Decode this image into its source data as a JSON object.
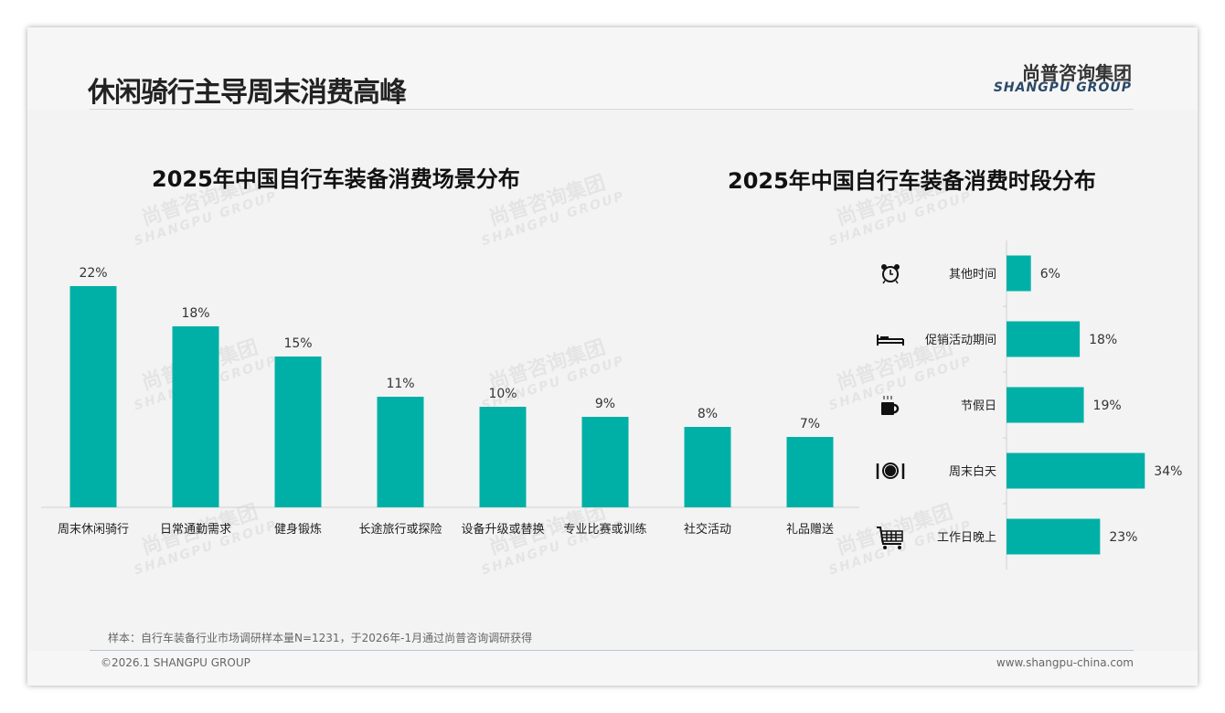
{
  "header": {
    "title": "休闲骑行主导周末消费高峰",
    "logo_cn": "尚普咨询集团",
    "logo_en": "SHANGPU GROUP"
  },
  "watermark": {
    "cn": "尚普咨询集团",
    "en": "SHANGPU GROUP"
  },
  "colors": {
    "bar": "#00b0a6"
  },
  "chart_data": [
    {
      "type": "bar",
      "title": "2025年中国自行车装备消费场景分布",
      "categories": [
        "周末休闲骑行",
        "日常通勤需求",
        "健身锻炼",
        "长途旅行或探险",
        "设备升级或替换",
        "专业比赛或训练",
        "社交活动",
        "礼品赠送"
      ],
      "values": [
        22,
        18,
        15,
        11,
        10,
        9,
        8,
        7
      ],
      "labels": [
        "22%",
        "18%",
        "15%",
        "11%",
        "10%",
        "9%",
        "8%",
        "7%"
      ],
      "unit": "%",
      "ylim": [
        0,
        25
      ]
    },
    {
      "type": "bar",
      "orientation": "horizontal",
      "title": "2025年中国自行车装备消费时段分布",
      "categories": [
        "其他时间",
        "促销活动期间",
        "节假日",
        "周末白天",
        "工作日晚上"
      ],
      "icons": [
        "alarm-clock-icon",
        "bed-icon",
        "coffee-cup-icon",
        "dining-icon",
        "shopping-cart-icon"
      ],
      "values": [
        6,
        18,
        19,
        34,
        23
      ],
      "labels": [
        "6%",
        "18%",
        "19%",
        "34%",
        "23%"
      ],
      "unit": "%",
      "xlim": [
        0,
        40
      ]
    }
  ],
  "footer": {
    "note": "样本：自行车装备行业市场调研样本量N=1231，于2026年-1月通过尚普咨询调研获得",
    "copyright": "©2026.1 SHANGPU GROUP",
    "url": "www.shangpu-china.com"
  }
}
